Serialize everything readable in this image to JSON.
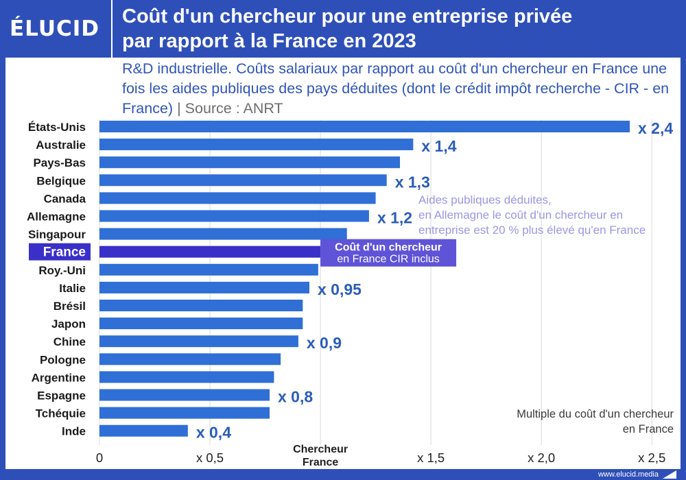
{
  "header": {
    "logo": "ÉLUCID",
    "title_line1": "Coût d'un chercheur pour une entreprise privée",
    "title_line2": "par rapport à la France en 2023"
  },
  "subtitle": {
    "text": "R&D industrielle. Coûts salariaux par rapport au coût d'un chercheur en France une fois les aides publiques des pays déduites (dont le crédit impôt recherche - CIR - en France)",
    "separator": "|",
    "source": "Source : ANRT"
  },
  "footer": {
    "url": "www.elucid.media"
  },
  "colors": {
    "brand": "#2f4fb8",
    "bar": "#2f6fd6",
    "bar_highlight": "#3a2fc8",
    "label_highlight_bg": "#3a2fc8",
    "annotation_bg": "#5f53d8",
    "value_text": "#2b5cb8",
    "note_text": "#9c94e8",
    "grid": "#d9d9d9"
  },
  "chart_data": {
    "type": "bar",
    "orientation": "horizontal",
    "categories": [
      "États-Unis",
      "Australie",
      "Pays-Bas",
      "Belgique",
      "Canada",
      "Allemagne",
      "Singapour",
      "France",
      "Roy.-Uni",
      "Italie",
      "Brésil",
      "Japon",
      "Chine",
      "Pologne",
      "Argentine",
      "Espagne",
      "Tchéquie",
      "Inde"
    ],
    "values": [
      2.4,
      1.42,
      1.36,
      1.3,
      1.25,
      1.22,
      1.12,
      1.0,
      0.99,
      0.95,
      0.92,
      0.92,
      0.9,
      0.82,
      0.79,
      0.77,
      0.77,
      0.4
    ],
    "value_labels": [
      "x 2,4",
      "x 1,4",
      "",
      "x 1,3",
      "",
      "x 1,2",
      "",
      "",
      "",
      "x 0,95",
      "",
      "",
      "x 0,9",
      "",
      "",
      "x 0,8",
      "",
      "x 0,4"
    ],
    "highlight": "France",
    "xlim": [
      0,
      2.5
    ],
    "xticks": [
      0,
      0.5,
      1.0,
      1.5,
      2.0,
      2.5
    ],
    "xtick_labels": [
      "0",
      "x 0,5",
      "Chercheur\nFrance",
      "x 1,5",
      "x 2,0",
      "x 2,5"
    ],
    "xlabel": "Multiple du coût d'un chercheur\nen France",
    "annotations": {
      "france_box": [
        "Coût d'un chercheur",
        "en France CIR inclus"
      ],
      "germany_note": [
        "Aides publiques déduites,",
        "en Allemagne le coût d'un chercheur en",
        "entreprise est 20 % plus élevé qu'en France"
      ]
    },
    "grid": true
  }
}
